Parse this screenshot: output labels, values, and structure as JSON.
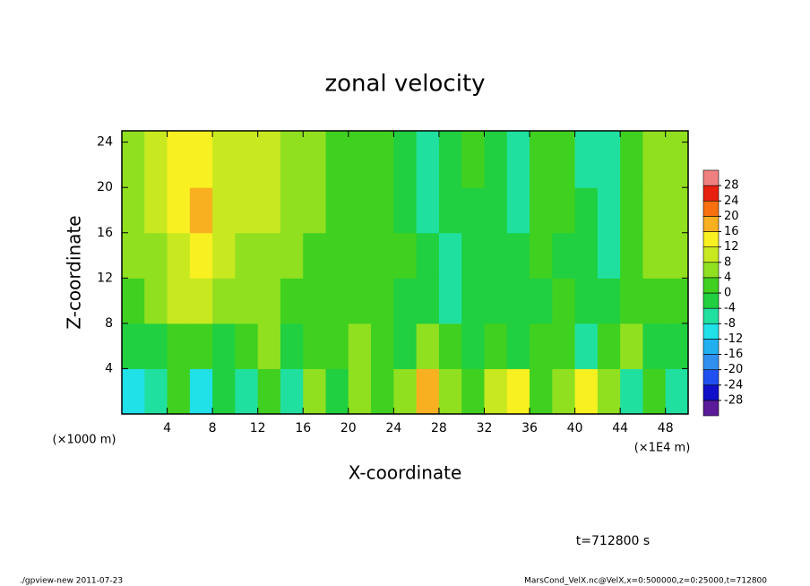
{
  "chart_data": {
    "type": "heatmap",
    "title": "zonal velocity",
    "x_label": "X-coordinate",
    "y_label": "Z-coordinate",
    "x_unit": "(×1E4 m)",
    "y_unit": "(×1000 m)",
    "annotation": "t=712800 s",
    "footer_left": "./gpview-new  2011-07-23",
    "footer_right": "MarsCond_VelX.nc@VelX,x=0:500000,z=0:25000,t=712800",
    "xlim": [
      0,
      50
    ],
    "ylim": [
      0,
      25
    ],
    "xticks": [
      4,
      8,
      12,
      16,
      20,
      24,
      28,
      32,
      36,
      40,
      44,
      48
    ],
    "yticks": [
      4,
      8,
      12,
      16,
      20,
      24
    ],
    "x": [
      1,
      3,
      5,
      7,
      9,
      11,
      13,
      15,
      17,
      19,
      21,
      23,
      25,
      27,
      29,
      31,
      33,
      35,
      37,
      39,
      41,
      43,
      45,
      47,
      49
    ],
    "y": [
      2,
      6,
      10,
      14,
      18,
      22
    ],
    "z": [
      [
        -10,
        -8,
        2,
        -12,
        -4,
        -6,
        0,
        -8,
        4,
        -2,
        6,
        0,
        6,
        16,
        4,
        0,
        10,
        14,
        0,
        4,
        12,
        4,
        -8,
        2,
        -6
      ],
      [
        -4,
        -2,
        0,
        2,
        -2,
        2,
        4,
        -2,
        2,
        0,
        4,
        2,
        -2,
        4,
        0,
        -2,
        2,
        -4,
        0,
        2,
        -6,
        0,
        4,
        -2,
        -4
      ],
      [
        2,
        4,
        8,
        10,
        6,
        4,
        4,
        2,
        2,
        2,
        2,
        0,
        -2,
        -4,
        -6,
        -4,
        -4,
        -2,
        -2,
        0,
        -2,
        -4,
        2,
        2,
        2
      ],
      [
        4,
        6,
        10,
        12,
        8,
        6,
        6,
        4,
        2,
        2,
        0,
        0,
        0,
        -4,
        -6,
        -4,
        -2,
        -4,
        0,
        -2,
        -2,
        -6,
        2,
        4,
        4
      ],
      [
        6,
        8,
        14,
        16,
        10,
        8,
        8,
        6,
        4,
        2,
        2,
        0,
        -2,
        -8,
        -4,
        -2,
        -4,
        -6,
        0,
        0,
        -4,
        -8,
        2,
        4,
        6
      ],
      [
        6,
        8,
        12,
        14,
        10,
        8,
        8,
        6,
        4,
        2,
        2,
        0,
        -2,
        -6,
        -4,
        0,
        -4,
        -6,
        0,
        0,
        -6,
        -8,
        2,
        4,
        6
      ]
    ],
    "levels": [
      -28,
      -24,
      -20,
      -16,
      -12,
      -8,
      -4,
      0,
      4,
      8,
      12,
      16,
      20,
      24,
      28
    ],
    "colors": [
      "#5a1a9a",
      "#1010c8",
      "#2050f0",
      "#3090f0",
      "#20b0f0",
      "#20e0e8",
      "#20e0a0",
      "#20d040",
      "#40d020",
      "#90e020",
      "#c8e820",
      "#f8f020",
      "#f8b020",
      "#f87010",
      "#e82010",
      "#f08080"
    ]
  }
}
